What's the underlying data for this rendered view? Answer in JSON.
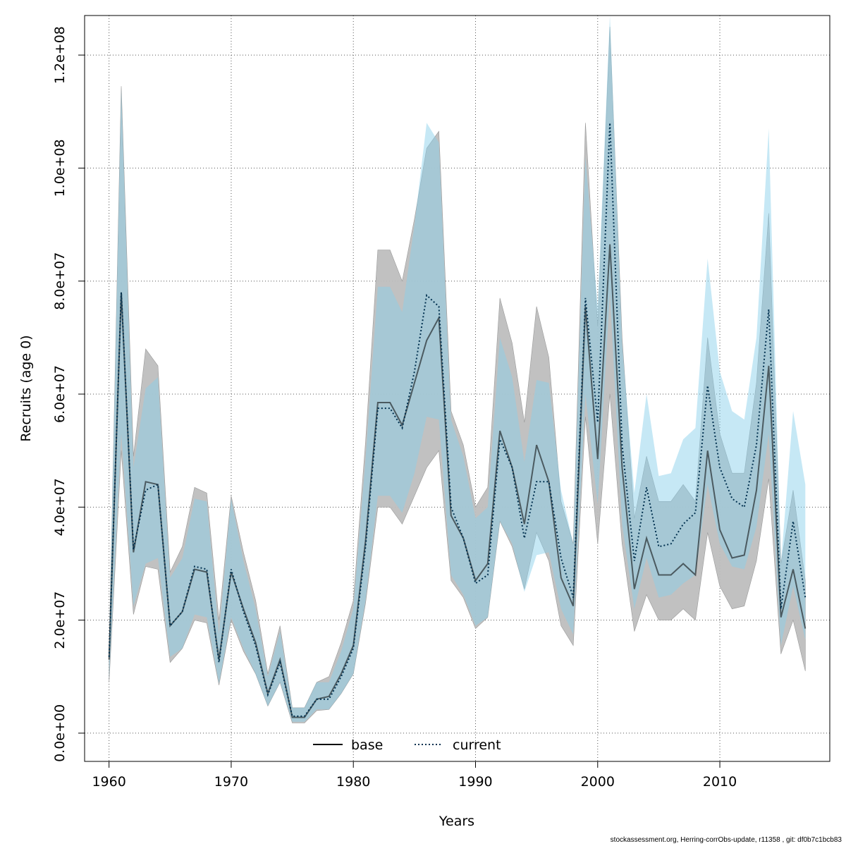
{
  "chart_data": {
    "type": "line",
    "xlabel": "Years",
    "ylabel": "Recruits (age 0)",
    "xlim": [
      1958,
      2019
    ],
    "ylim": [
      -5000000,
      127000000
    ],
    "x_ticks": [
      1960,
      1970,
      1980,
      1990,
      2000,
      2010
    ],
    "x_tick_labels": [
      "1960",
      "1970",
      "1980",
      "1990",
      "2000",
      "2010"
    ],
    "y_ticks": [
      0,
      20000000,
      40000000,
      60000000,
      80000000,
      100000000,
      120000000
    ],
    "y_tick_labels": [
      "0.0e+00",
      "2.0e+07",
      "4.0e+07",
      "6.0e+07",
      "8.0e+07",
      "1.0e+08",
      "1.2e+08"
    ],
    "grid": true,
    "legend_position": "bottom-center",
    "x": [
      1960,
      1961,
      1962,
      1963,
      1964,
      1965,
      1966,
      1967,
      1968,
      1969,
      1970,
      1971,
      1972,
      1973,
      1974,
      1975,
      1976,
      1977,
      1978,
      1979,
      1980,
      1981,
      1982,
      1983,
      1984,
      1985,
      1986,
      1987,
      1988,
      1989,
      1990,
      1991,
      1992,
      1993,
      1994,
      1995,
      1996,
      1997,
      1998,
      1999,
      2000,
      2001,
      2002,
      2003,
      2004,
      2005,
      2006,
      2007,
      2008,
      2009,
      2010,
      2011,
      2012,
      2013,
      2014,
      2015,
      2016,
      2017
    ],
    "series": [
      {
        "name": "base",
        "color": "#000000",
        "band_color": "#bebebe",
        "line_style": "solid",
        "values": [
          13000000,
          78000000,
          32000000,
          44500000,
          44000000,
          19000000,
          21500000,
          29000000,
          28500000,
          13000000,
          28500000,
          22000000,
          16000000,
          7000000,
          13000000,
          2800000,
          2800000,
          6000000,
          6500000,
          10500000,
          15500000,
          34000000,
          58500000,
          58500000,
          54500000,
          62000000,
          69500000,
          73500000,
          38500000,
          34500000,
          27000000,
          30000000,
          53500000,
          47000000,
          37000000,
          51000000,
          44500000,
          27500000,
          22500000,
          75500000,
          48500000,
          86500000,
          47000000,
          25500000,
          34500000,
          28000000,
          28000000,
          30000000,
          28000000,
          50000000,
          36000000,
          31000000,
          31500000,
          43000000,
          65000000,
          20500000,
          29000000,
          18500000
        ],
        "lower": [
          9000000,
          50000000,
          21000000,
          29500000,
          29000000,
          12500000,
          15000000,
          20000000,
          19500000,
          8500000,
          20000000,
          14500000,
          10500000,
          4800000,
          9000000,
          1800000,
          1800000,
          4000000,
          4200000,
          7000000,
          10500000,
          23000000,
          40000000,
          40000000,
          37000000,
          42000000,
          47000000,
          50000000,
          27000000,
          24000000,
          18500000,
          20500000,
          37500000,
          33000000,
          25500000,
          35500000,
          30500000,
          19000000,
          15500000,
          56000000,
          33500000,
          60000000,
          33500000,
          18000000,
          24500000,
          20000000,
          20000000,
          22000000,
          20000000,
          35500000,
          26000000,
          22000000,
          22500000,
          30500000,
          45000000,
          14000000,
          20000000,
          11000000
        ],
        "upper": [
          14000000,
          114500000,
          49000000,
          68000000,
          65000000,
          28500000,
          33000000,
          43500000,
          42500000,
          20000000,
          42000000,
          32000000,
          23500000,
          10500000,
          19000000,
          4500000,
          4500000,
          9000000,
          10000000,
          16000000,
          23500000,
          51500000,
          85500000,
          85500000,
          80000000,
          91000000,
          103500000,
          106500000,
          57000000,
          51000000,
          40000000,
          43500000,
          77000000,
          69000000,
          55000000,
          75500000,
          66500000,
          41000000,
          33500000,
          108000000,
          72000000,
          125000000,
          70000000,
          38000000,
          49000000,
          41000000,
          41000000,
          44000000,
          41000000,
          70000000,
          53000000,
          46000000,
          46000000,
          62000000,
          92000000,
          30000000,
          43000000,
          27000000
        ]
      },
      {
        "name": "current",
        "color": "#00304f",
        "band_color": "#87ceeb",
        "line_style": "dotted",
        "values": [
          13500000,
          78000000,
          32500000,
          43000000,
          44000000,
          19000000,
          21500000,
          29500000,
          29000000,
          12500000,
          29000000,
          21500000,
          15500000,
          6800000,
          12500000,
          3000000,
          3000000,
          6000000,
          6000000,
          10000000,
          15000000,
          33000000,
          57500000,
          57500000,
          54000000,
          64000000,
          77500000,
          75500000,
          40000000,
          34500000,
          26500000,
          28000000,
          52000000,
          47000000,
          34500000,
          44500000,
          44500000,
          31000000,
          24000000,
          77000000,
          55000000,
          108000000,
          51000000,
          30500000,
          43500000,
          33000000,
          33500000,
          37000000,
          39000000,
          61500000,
          47000000,
          41500000,
          40000000,
          51000000,
          75000000,
          22000000,
          37500000,
          24000000
        ],
        "lower": [
          9500000,
          53000000,
          22500000,
          30000000,
          31000000,
          13500000,
          15000000,
          21000000,
          20500000,
          8800000,
          20500000,
          15000000,
          10500000,
          4800000,
          9000000,
          2000000,
          2000000,
          4200000,
          4200000,
          7000000,
          10500000,
          23500000,
          42000000,
          42000000,
          39000000,
          46000000,
          56000000,
          55500000,
          28000000,
          24500000,
          19000000,
          20500000,
          37500000,
          33500000,
          25000000,
          31500000,
          32000000,
          22000000,
          17500000,
          60000000,
          40500000,
          78000000,
          37000000,
          22000000,
          31000000,
          24000000,
          24500000,
          26500000,
          28000000,
          44000000,
          33500000,
          29500000,
          29000000,
          36500000,
          53000000,
          15500000,
          26000000,
          16500000
        ],
        "upper": [
          15000000,
          114000000,
          47000000,
          61000000,
          63000000,
          27500000,
          31000000,
          41500000,
          41000000,
          17500000,
          41500000,
          30500000,
          22000000,
          10000000,
          18000000,
          4500000,
          4500000,
          9000000,
          9000000,
          14500000,
          22000000,
          48500000,
          79000000,
          79000000,
          74500000,
          90000000,
          108000000,
          104500000,
          55500000,
          49000000,
          38000000,
          40000000,
          70000000,
          63000000,
          48000000,
          62500000,
          62000000,
          43000000,
          33500000,
          102000000,
          75500000,
          127000000,
          69000000,
          42500000,
          60000000,
          45500000,
          46000000,
          52000000,
          54000000,
          84000000,
          64000000,
          57000000,
          55500000,
          70000000,
          107000000,
          30000000,
          57000000,
          44000000
        ]
      }
    ]
  },
  "legend": {
    "entries": [
      {
        "label": "base",
        "style": "solid",
        "color": "#000000"
      },
      {
        "label": "current",
        "style": "dotted",
        "color": "#00304f"
      }
    ]
  },
  "footer": {
    "text": "stockassessment.org, Herring-corrObs-update, r11358 , git: df0b7c1bcb83"
  }
}
